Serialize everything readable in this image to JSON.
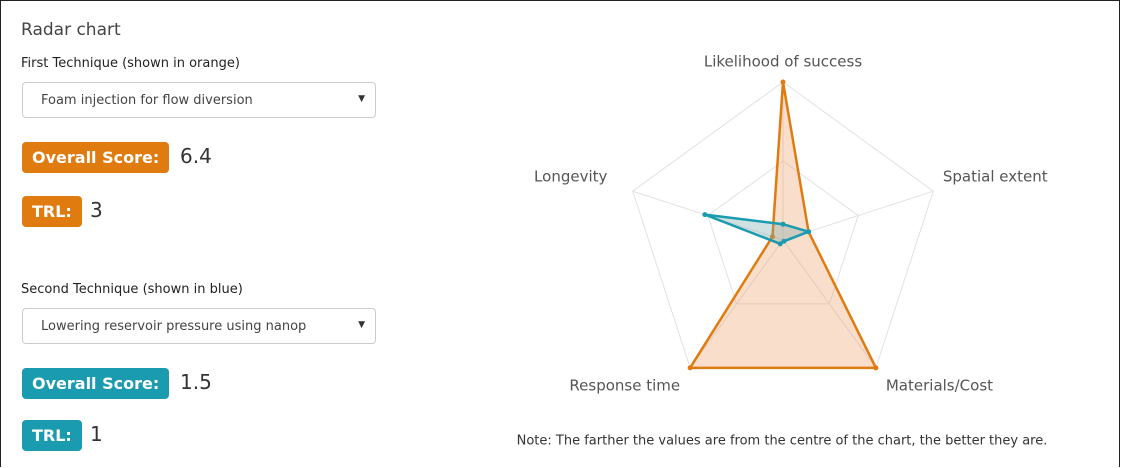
{
  "panel": {
    "title": "Radar chart",
    "first": {
      "label": "First Technique (shown in orange)",
      "selected": "Foam injection for flow diversion",
      "score_label": "Overall Score:",
      "score": 6.4,
      "trl_label": "TRL:",
      "trl": 3,
      "color": "#e07b10"
    },
    "second": {
      "label": "Second Technique (shown in blue)",
      "selected": "Lowering reservoir pressure using nanop",
      "score_label": "Overall Score:",
      "score": 1.5,
      "trl_label": "TRL:",
      "trl": 1,
      "color": "#1a9bb0"
    }
  },
  "chart_data": {
    "type": "radar",
    "categories": [
      "Likelihood of success",
      "Spatial extent",
      "Materials/Cost",
      "Response time",
      "Longevity"
    ],
    "series": [
      {
        "color": "#e07b10",
        "fill": "rgba(240,160,110,0.35)",
        "values": [
          10,
          1.7,
          10,
          10,
          0.7
        ]
      },
      {
        "color": "#1a9bb0",
        "fill": "rgba(120,170,170,0.35)",
        "values": [
          1,
          1.7,
          0.1,
          0.3,
          5.2
        ]
      }
    ],
    "rlim": [
      0,
      10
    ],
    "rticks": [
      5,
      10
    ],
    "note": "Note: The farther the values are from the centre of the chart, the better they are."
  }
}
